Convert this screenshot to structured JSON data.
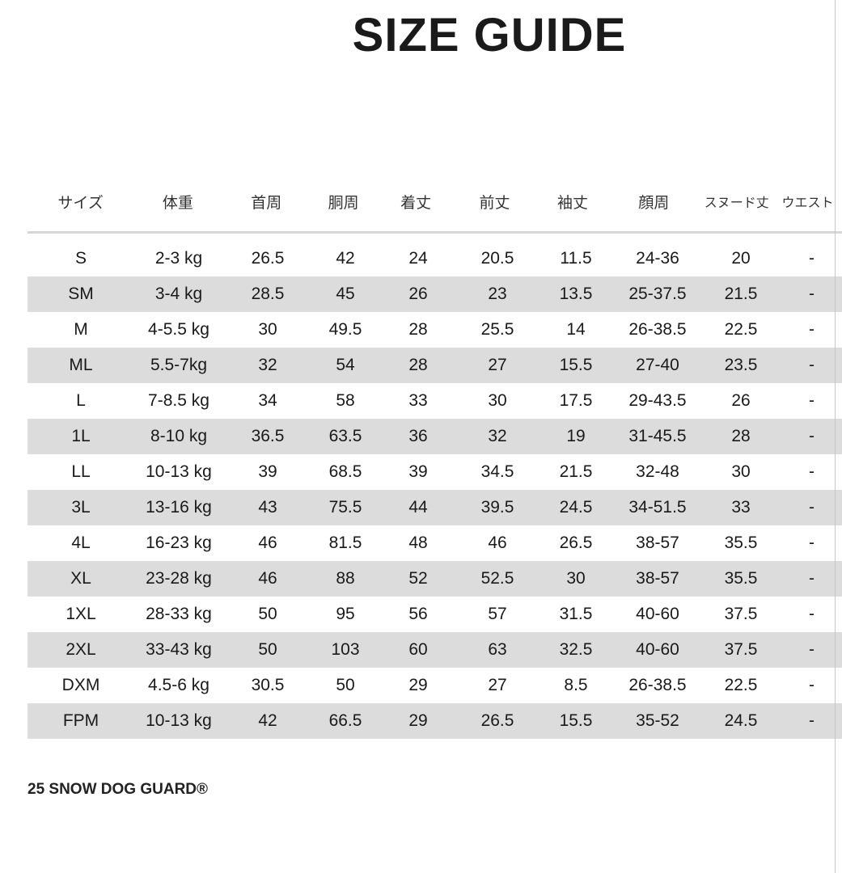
{
  "title": "SIZE GUIDE",
  "table": {
    "headers": [
      "サイズ",
      "体重",
      "首周",
      "胴周",
      "着丈",
      "前丈",
      "袖丈",
      "顔周",
      "スヌード丈",
      "ウエスト"
    ],
    "rows": [
      [
        "S",
        "2-3 kg",
        "26.5",
        "42",
        "24",
        "20.5",
        "11.5",
        "24-36",
        "20",
        "-"
      ],
      [
        "SM",
        "3-4 kg",
        "28.5",
        "45",
        "26",
        "23",
        "13.5",
        "25-37.5",
        "21.5",
        "-"
      ],
      [
        "M",
        "4-5.5 kg",
        "30",
        "49.5",
        "28",
        "25.5",
        "14",
        "26-38.5",
        "22.5",
        "-"
      ],
      [
        "ML",
        "5.5-7kg",
        "32",
        "54",
        "28",
        "27",
        "15.5",
        "27-40",
        "23.5",
        "-"
      ],
      [
        "L",
        "7-8.5 kg",
        "34",
        "58",
        "33",
        "30",
        "17.5",
        "29-43.5",
        "26",
        "-"
      ],
      [
        "1L",
        "8-10 kg",
        "36.5",
        "63.5",
        "36",
        "32",
        "19",
        "31-45.5",
        "28",
        "-"
      ],
      [
        "LL",
        "10-13 kg",
        "39",
        "68.5",
        "39",
        "34.5",
        "21.5",
        "32-48",
        "30",
        "-"
      ],
      [
        "3L",
        "13-16 kg",
        "43",
        "75.5",
        "44",
        "39.5",
        "24.5",
        "34-51.5",
        "33",
        "-"
      ],
      [
        "4L",
        "16-23 kg",
        "46",
        "81.5",
        "48",
        "46",
        "26.5",
        "38-57",
        "35.5",
        "-"
      ],
      [
        "XL",
        "23-28 kg",
        "46",
        "88",
        "52",
        "52.5",
        "30",
        "38-57",
        "35.5",
        "-"
      ],
      [
        "1XL",
        "28-33 kg",
        "50",
        "95",
        "56",
        "57",
        "31.5",
        "40-60",
        "37.5",
        "-"
      ],
      [
        "2XL",
        "33-43 kg",
        "50",
        "103",
        "60",
        "63",
        "32.5",
        "40-60",
        "37.5",
        "-"
      ],
      [
        "DXM",
        "4.5-6 kg",
        "30.5",
        "50",
        "29",
        "27",
        "8.5",
        "26-38.5",
        "22.5",
        "-"
      ],
      [
        "FPM",
        "10-13 kg",
        "42",
        "66.5",
        "29",
        "26.5",
        "15.5",
        "35-52",
        "24.5",
        "-"
      ]
    ],
    "shaded_row_color": "#dcdcdc"
  },
  "footer": "25 SNOW DOG GUARD®"
}
